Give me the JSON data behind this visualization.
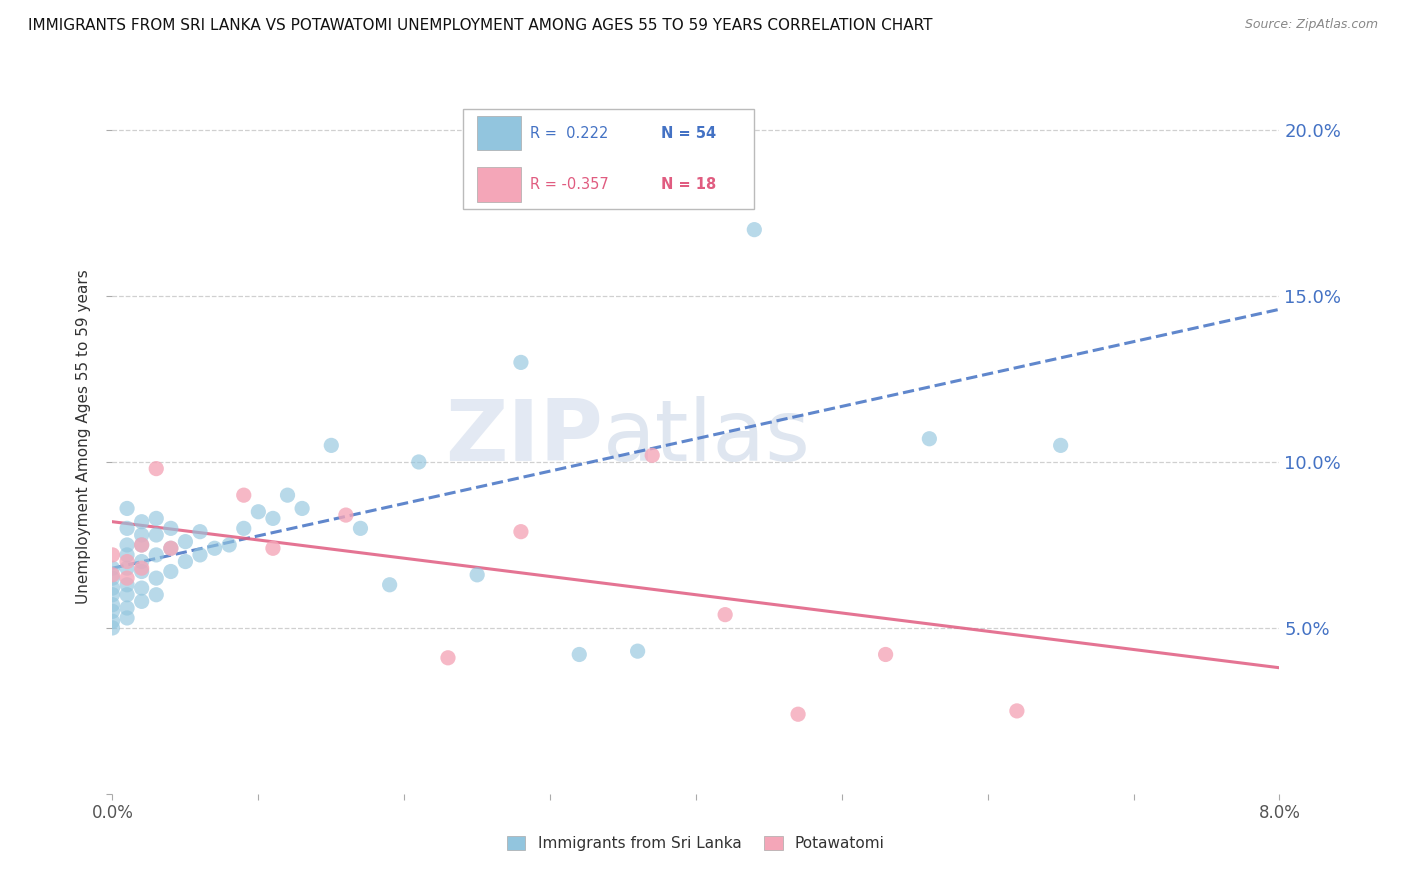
{
  "title": "IMMIGRANTS FROM SRI LANKA VS POTAWATOMI UNEMPLOYMENT AMONG AGES 55 TO 59 YEARS CORRELATION CHART",
  "source": "Source: ZipAtlas.com",
  "ylabel": "Unemployment Among Ages 55 to 59 years",
  "xlim": [
    0.0,
    0.08
  ],
  "ylim": [
    0.0,
    0.215
  ],
  "xticks": [
    0.0,
    0.01,
    0.02,
    0.03,
    0.04,
    0.05,
    0.06,
    0.07,
    0.08
  ],
  "xticklabels": [
    "0.0%",
    "",
    "",
    "",
    "",
    "",
    "",
    "",
    "8.0%"
  ],
  "yticks_right": [
    0.05,
    0.1,
    0.15,
    0.2
  ],
  "ytick_labels_right": [
    "5.0%",
    "10.0%",
    "15.0%",
    "20.0%"
  ],
  "legend_r1": "0.222",
  "legend_n1": "54",
  "legend_r2": "-0.357",
  "legend_n2": "18",
  "color_blue": "#92c5de",
  "color_pink": "#f4a6b8",
  "color_trend_blue": "#4472c4",
  "color_trend_pink": "#e05c80",
  "color_text_blue": "#4472c4",
  "color_text_pink": "#e05c80",
  "color_grid": "#d0d0d0",
  "watermark_color": "#cdd8ea",
  "blue_x": [
    0.0,
    0.0,
    0.0,
    0.0,
    0.0,
    0.0,
    0.0,
    0.0,
    0.001,
    0.001,
    0.001,
    0.001,
    0.001,
    0.001,
    0.001,
    0.001,
    0.001,
    0.002,
    0.002,
    0.002,
    0.002,
    0.002,
    0.002,
    0.002,
    0.003,
    0.003,
    0.003,
    0.003,
    0.003,
    0.004,
    0.004,
    0.004,
    0.005,
    0.005,
    0.006,
    0.006,
    0.007,
    0.008,
    0.009,
    0.01,
    0.011,
    0.012,
    0.013,
    0.015,
    0.017,
    0.019,
    0.021,
    0.025,
    0.028,
    0.032,
    0.036,
    0.044,
    0.056,
    0.065
  ],
  "blue_y": [
    0.05,
    0.052,
    0.055,
    0.057,
    0.06,
    0.062,
    0.065,
    0.068,
    0.053,
    0.056,
    0.06,
    0.063,
    0.068,
    0.072,
    0.075,
    0.08,
    0.086,
    0.058,
    0.062,
    0.067,
    0.07,
    0.075,
    0.078,
    0.082,
    0.06,
    0.065,
    0.072,
    0.078,
    0.083,
    0.067,
    0.074,
    0.08,
    0.07,
    0.076,
    0.072,
    0.079,
    0.074,
    0.075,
    0.08,
    0.085,
    0.083,
    0.09,
    0.086,
    0.105,
    0.08,
    0.063,
    0.1,
    0.066,
    0.13,
    0.042,
    0.043,
    0.17,
    0.107,
    0.105
  ],
  "pink_x": [
    0.0,
    0.0,
    0.001,
    0.001,
    0.002,
    0.002,
    0.003,
    0.004,
    0.009,
    0.011,
    0.016,
    0.023,
    0.028,
    0.037,
    0.042,
    0.047,
    0.053,
    0.062
  ],
  "pink_y": [
    0.066,
    0.072,
    0.065,
    0.07,
    0.068,
    0.075,
    0.098,
    0.074,
    0.09,
    0.074,
    0.084,
    0.041,
    0.079,
    0.102,
    0.054,
    0.024,
    0.042,
    0.025
  ],
  "blue_trend_x0": 0.0,
  "blue_trend_x1": 0.08,
  "blue_trend_y0": 0.068,
  "blue_trend_y1": 0.146,
  "pink_trend_x0": 0.0,
  "pink_trend_x1": 0.08,
  "pink_trend_y0": 0.082,
  "pink_trend_y1": 0.038
}
